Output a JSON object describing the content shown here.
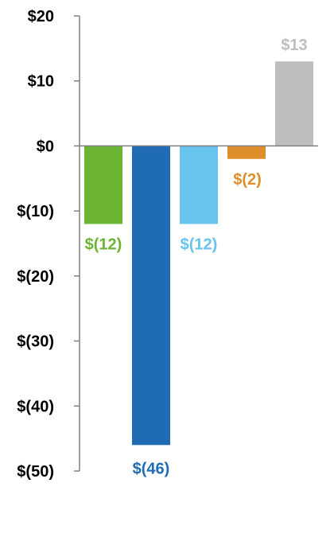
{
  "chart_data": {
    "type": "bar",
    "title": "",
    "xlabel": "",
    "ylabel": "",
    "ylim": [
      -50,
      20
    ],
    "y_ticks": [
      20,
      10,
      0,
      -10,
      -20,
      -30,
      -40,
      -50
    ],
    "y_tick_labels": [
      "$20",
      "$10",
      "$0",
      "$(10)",
      "$(20)",
      "$(30)",
      "$(40)",
      "$(50)"
    ],
    "grid": false,
    "legend": "none",
    "axis_color": "#808080",
    "values": [
      -12,
      -46,
      -12,
      -2,
      13
    ],
    "data_labels": [
      "$(12)",
      "$(46)",
      "$(12)",
      "$(2)",
      "$13"
    ],
    "colors": [
      "#6cb533",
      "#1f6cb5",
      "#69c3ef",
      "#de8e2a",
      "#bcbec0"
    ]
  }
}
